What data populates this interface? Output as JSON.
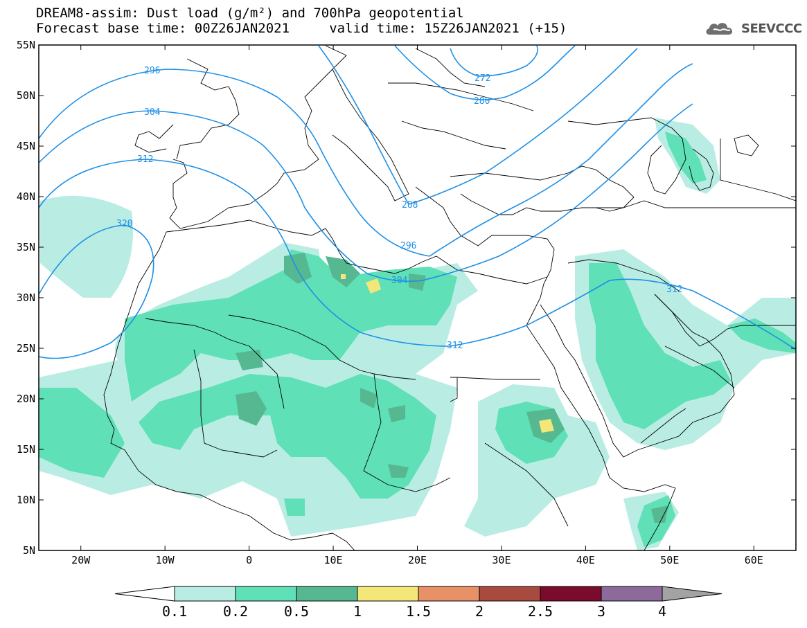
{
  "title": {
    "line1": "DREAM8-assim: Dust load (g/m²) and 700hPa geopotential",
    "line2": "Forecast base time: 00Z26JAN2021     valid time: 15Z26JAN2021 (+15)"
  },
  "logo": {
    "text": "SEEVCCC",
    "icon": "cloud-icon"
  },
  "map": {
    "lon_range": [
      -25,
      65
    ],
    "lat_range": [
      5,
      55
    ],
    "lat_ticks": [
      "55N",
      "50N",
      "45N",
      "40N",
      "35N",
      "30N",
      "25N",
      "20N",
      "15N",
      "10N",
      "5N"
    ],
    "lon_ticks": [
      "20W",
      "10W",
      "0",
      "10E",
      "20E",
      "30E",
      "40E",
      "50E",
      "60E"
    ]
  },
  "contours": {
    "color": "#1e90e6",
    "labels": [
      "296",
      "272",
      "280",
      "304",
      "312",
      "320",
      "288",
      "296",
      "304",
      "312",
      "312"
    ]
  },
  "colorbar": {
    "labels": [
      "0.1",
      "0.2",
      "0.5",
      "1",
      "1.5",
      "2",
      "2.5",
      "3",
      "4"
    ],
    "colors": [
      "#ffffff",
      "#b9ede4",
      "#5fe0b6",
      "#56b891",
      "#f4e77a",
      "#e89066",
      "#a84a3e",
      "#7a0b2c",
      "#8c6a9c",
      "#a3a3a3"
    ]
  },
  "dust_colors": {
    "low": "#b9ede4",
    "mid": "#5fe0b6",
    "high": "#56b891",
    "peak": "#f4e77a"
  }
}
